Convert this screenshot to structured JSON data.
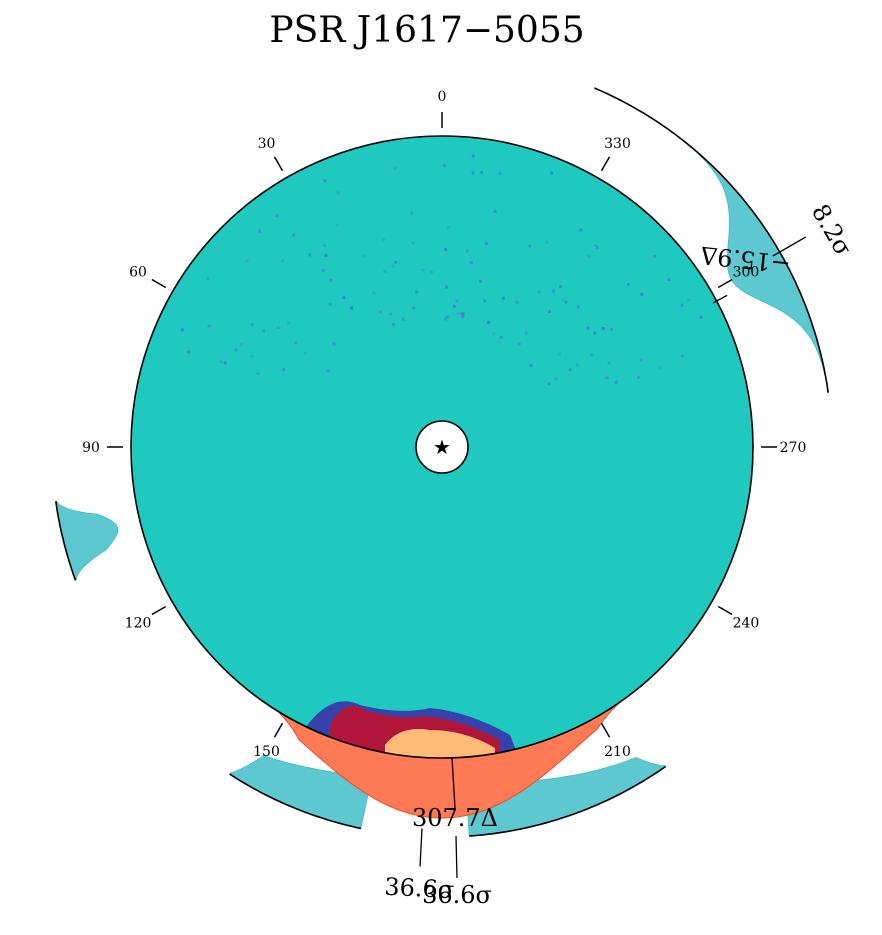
{
  "chart_data": {
    "type": "polar",
    "title": "PSR J1617−5055",
    "center_marker": "★",
    "angle_direction": "counterclockwise",
    "angle_zero": "top",
    "angle_ticks": [
      0,
      30,
      60,
      90,
      120,
      150,
      210,
      240,
      270,
      300,
      330
    ],
    "disk_color": "#20c9c0",
    "excess_color": "#ff7a55",
    "excess_core_color": "#ffbb77",
    "ring_color": "#5dc8d0",
    "features": [
      {
        "label": "−15.9Δ",
        "angle": 298
      },
      {
        "label": "307.7Δ",
        "angle": 180
      }
    ],
    "outer_arcs": [
      {
        "label": "8.2σ",
        "start": 278,
        "end": 337,
        "peak": 300,
        "peak_width": 9
      },
      {
        "label": "36.6σ",
        "start": 147,
        "end": 215,
        "peak": 177,
        "peak_width": 38,
        "gap": [
          168,
          184
        ]
      },
      {
        "label": "",
        "start": 98,
        "end": 110,
        "peak": 104,
        "peak_width": 5
      }
    ]
  }
}
